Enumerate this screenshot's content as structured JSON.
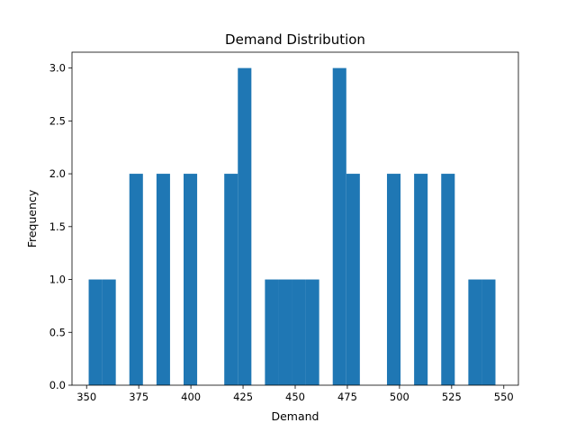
{
  "chart_data": {
    "type": "bar",
    "title": "Demand Distribution",
    "xlabel": "Demand",
    "ylabel": "Frequency",
    "xlim": [
      343,
      557
    ],
    "ylim": [
      0,
      3.15
    ],
    "xticks": [
      350,
      375,
      400,
      425,
      450,
      475,
      500,
      525,
      550
    ],
    "yticks": [
      0.0,
      0.5,
      1.0,
      1.5,
      2.0,
      2.5,
      3.0
    ],
    "xtick_labels": [
      "350",
      "375",
      "400",
      "425",
      "450",
      "475",
      "500",
      "525",
      "550"
    ],
    "ytick_labels": [
      "0.0",
      "0.5",
      "1.0",
      "1.5",
      "2.0",
      "2.5",
      "3.0"
    ],
    "bar_color": "#1f77b4",
    "bins": [
      {
        "x0": 351.0,
        "x1": 357.5,
        "value": 1
      },
      {
        "x0": 357.5,
        "x1": 364.0,
        "value": 1
      },
      {
        "x0": 370.5,
        "x1": 377.0,
        "value": 2
      },
      {
        "x0": 383.5,
        "x1": 390.0,
        "value": 2
      },
      {
        "x0": 396.5,
        "x1": 403.0,
        "value": 2
      },
      {
        "x0": 416.0,
        "x1": 422.5,
        "value": 2
      },
      {
        "x0": 422.5,
        "x1": 429.0,
        "value": 3
      },
      {
        "x0": 435.5,
        "x1": 442.0,
        "value": 1
      },
      {
        "x0": 442.0,
        "x1": 448.5,
        "value": 1
      },
      {
        "x0": 448.5,
        "x1": 455.0,
        "value": 1
      },
      {
        "x0": 455.0,
        "x1": 461.5,
        "value": 1
      },
      {
        "x0": 468.0,
        "x1": 474.5,
        "value": 3
      },
      {
        "x0": 474.5,
        "x1": 481.0,
        "value": 2
      },
      {
        "x0": 494.0,
        "x1": 500.5,
        "value": 2
      },
      {
        "x0": 507.0,
        "x1": 513.5,
        "value": 2
      },
      {
        "x0": 520.0,
        "x1": 526.5,
        "value": 2
      },
      {
        "x0": 533.0,
        "x1": 539.5,
        "value": 1
      },
      {
        "x0": 539.5,
        "x1": 546.0,
        "value": 1
      }
    ]
  }
}
